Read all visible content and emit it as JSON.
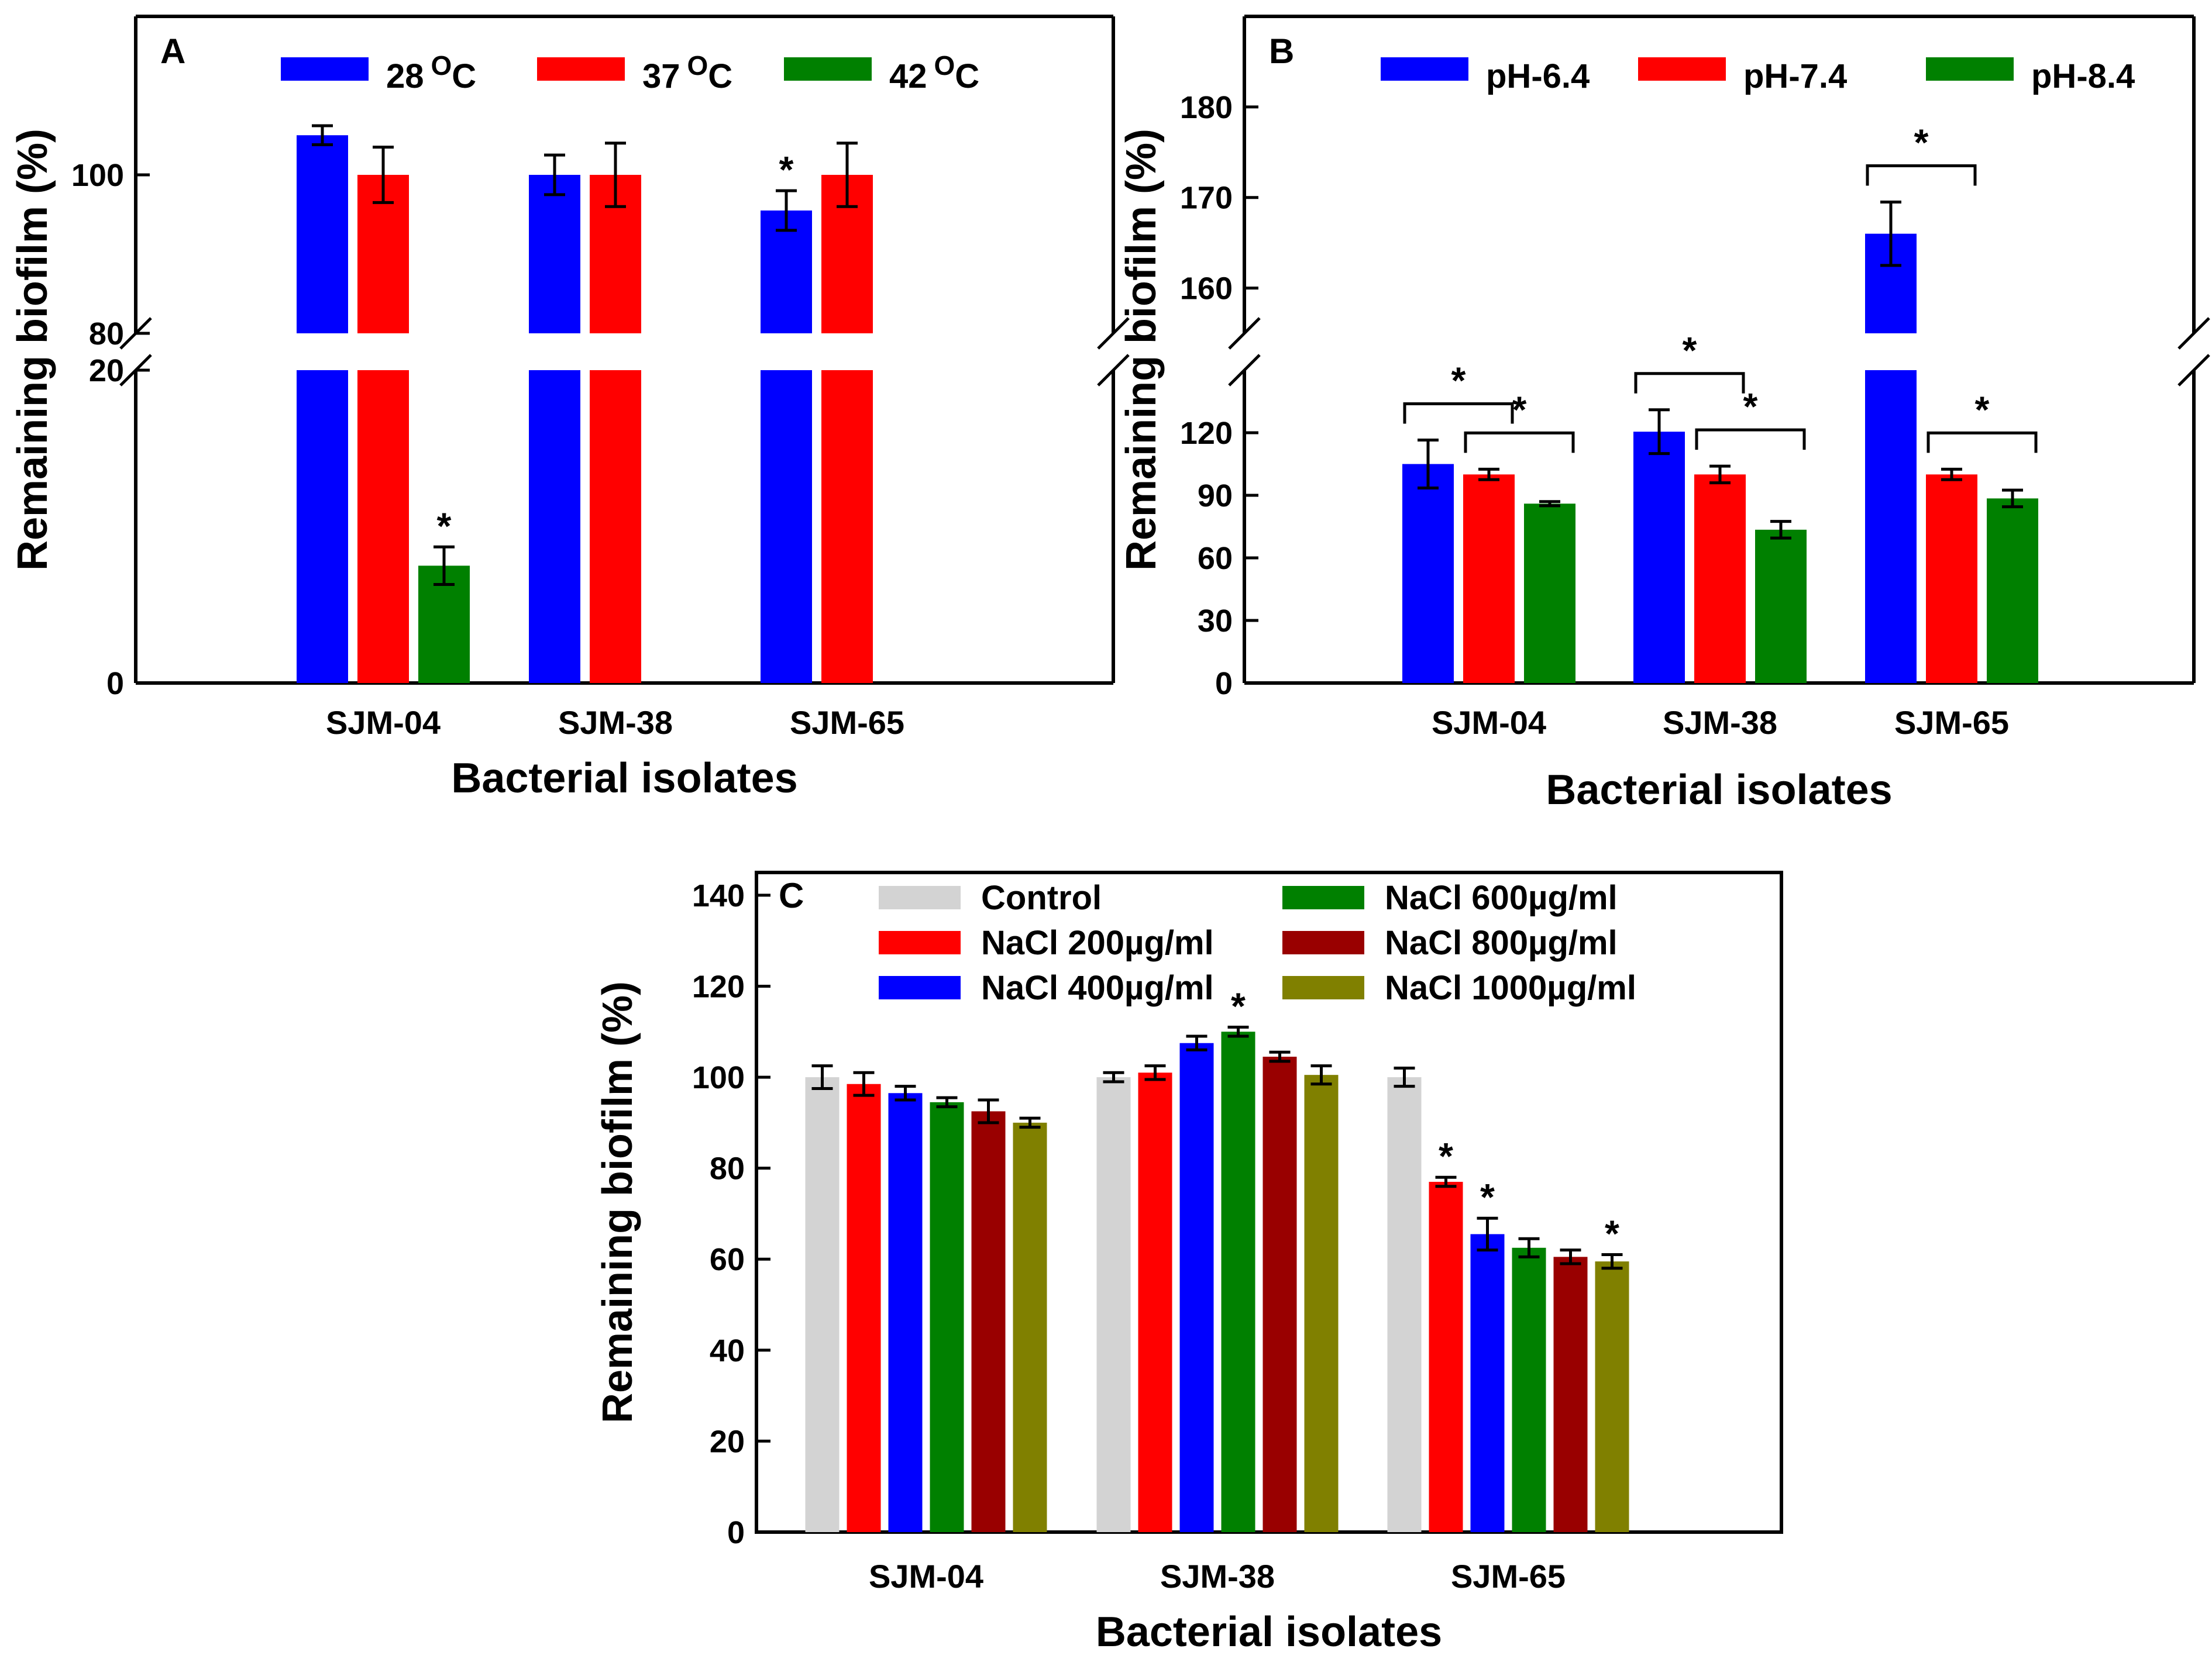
{
  "figure": {
    "panels": [
      "A",
      "B",
      "C"
    ]
  },
  "chart_data": [
    {
      "panel": "A",
      "type": "bar",
      "title": "",
      "xlabel": "Bacterial isolates",
      "ylabel": "Remaining biofilm (%)",
      "categories": [
        "SJM-04",
        "SJM-38",
        "SJM-65"
      ],
      "axis_break": {
        "lower_range": [
          0,
          20
        ],
        "upper_range": [
          80,
          120
        ]
      },
      "yticks_lower": [
        "0",
        "20"
      ],
      "yticks_upper": [
        "80",
        "100"
      ],
      "series": [
        {
          "name": "28",
          "superscript": "O",
          "unit": "C",
          "color": "#0000ff",
          "values": [
            105,
            100,
            95.5
          ],
          "errors": [
            1.2,
            2.5,
            2.5
          ]
        },
        {
          "name": "37",
          "superscript": "O",
          "unit": "C",
          "color": "#ff0000",
          "values": [
            100,
            100,
            100
          ],
          "errors": [
            3.5,
            4,
            4
          ]
        },
        {
          "name": "42",
          "superscript": "O",
          "unit": "C",
          "color": "#008000",
          "values": [
            7.5,
            0,
            0
          ],
          "errors": [
            1.2,
            0,
            0
          ]
        }
      ],
      "significance": [
        {
          "category": "SJM-04",
          "series": "42",
          "label": "*"
        },
        {
          "category": "SJM-65",
          "series": "28",
          "label": "*"
        }
      ]
    },
    {
      "panel": "B",
      "type": "bar",
      "title": "",
      "xlabel": "Bacterial isolates",
      "ylabel": "Remaining biofilm (%)",
      "categories": [
        "SJM-04",
        "SJM-38",
        "SJM-65"
      ],
      "axis_break": {
        "lower_range": [
          0,
          150
        ],
        "upper_range": [
          155,
          190
        ]
      },
      "yticks_lower": [
        "0",
        "30",
        "60",
        "90",
        "120"
      ],
      "yticks_upper": [
        "160",
        "170",
        "180"
      ],
      "series": [
        {
          "name": "pH-6.4",
          "color": "#0000ff",
          "values": [
            105,
            120.5,
            166
          ],
          "errors": [
            11.5,
            10.5,
            3.5
          ]
        },
        {
          "name": "pH-7.4",
          "color": "#ff0000",
          "values": [
            100,
            100,
            100
          ],
          "errors": [
            2.5,
            4,
            2.5
          ]
        },
        {
          "name": "pH-8.4",
          "color": "#008000",
          "values": [
            86,
            73.5,
            88.5
          ],
          "errors": [
            1,
            4,
            4
          ]
        }
      ],
      "significance_brackets": [
        {
          "category": "SJM-04",
          "from": "pH-6.4",
          "to": "pH-7.4",
          "label": "*"
        },
        {
          "category": "SJM-04",
          "from": "pH-7.4",
          "to": "pH-8.4",
          "label": "*"
        },
        {
          "category": "SJM-38",
          "from": "pH-6.4",
          "to": "pH-7.4",
          "label": "*"
        },
        {
          "category": "SJM-38",
          "from": "pH-7.4",
          "to": "pH-8.4",
          "label": "*"
        },
        {
          "category": "SJM-65",
          "from": "pH-6.4",
          "to": "pH-7.4",
          "label": "*"
        },
        {
          "category": "SJM-65",
          "from": "pH-7.4",
          "to": "pH-8.4",
          "label": "*"
        }
      ]
    },
    {
      "panel": "C",
      "type": "bar",
      "title": "",
      "xlabel": "Bacterial isolates",
      "ylabel": "Remaining biofilm (%)",
      "categories": [
        "SJM-04",
        "SJM-38",
        "SJM-65"
      ],
      "ylim": [
        0,
        145
      ],
      "yticks": [
        "0",
        "20",
        "40",
        "60",
        "80",
        "100",
        "120",
        "140"
      ],
      "series": [
        {
          "name": "Control",
          "color": "#d3d3d3",
          "values": [
            100,
            100,
            100
          ],
          "errors": [
            2.5,
            1,
            2
          ]
        },
        {
          "name": "NaCl 200µg/ml",
          "color": "#ff0000",
          "values": [
            98.5,
            101,
            77
          ],
          "errors": [
            2.5,
            1.5,
            1
          ]
        },
        {
          "name": "NaCl 400µg/ml",
          "color": "#0000ff",
          "values": [
            96.5,
            107.5,
            65.5
          ],
          "errors": [
            1.5,
            1.5,
            3.5
          ]
        },
        {
          "name": "NaCl 600µg/ml",
          "color": "#008000",
          "values": [
            94.5,
            110,
            62.5
          ],
          "errors": [
            1,
            1,
            2
          ]
        },
        {
          "name": "NaCl 800µg/ml",
          "color": "#990000",
          "values": [
            92.5,
            104.5,
            60.5
          ],
          "errors": [
            2.5,
            1,
            1.5
          ]
        },
        {
          "name": "NaCl 1000µg/ml",
          "color": "#808000",
          "values": [
            90,
            100.5,
            59.5
          ],
          "errors": [
            1,
            2,
            1.5
          ]
        }
      ],
      "significance": [
        {
          "category": "SJM-38",
          "series": "NaCl 600µg/ml",
          "label": "*"
        },
        {
          "category": "SJM-65",
          "series": "NaCl 200µg/ml",
          "label": "*"
        },
        {
          "category": "SJM-65",
          "series": "NaCl 400µg/ml",
          "label": "*"
        },
        {
          "category": "SJM-65",
          "series": "NaCl 1000µg/ml",
          "label": "*"
        }
      ]
    }
  ]
}
